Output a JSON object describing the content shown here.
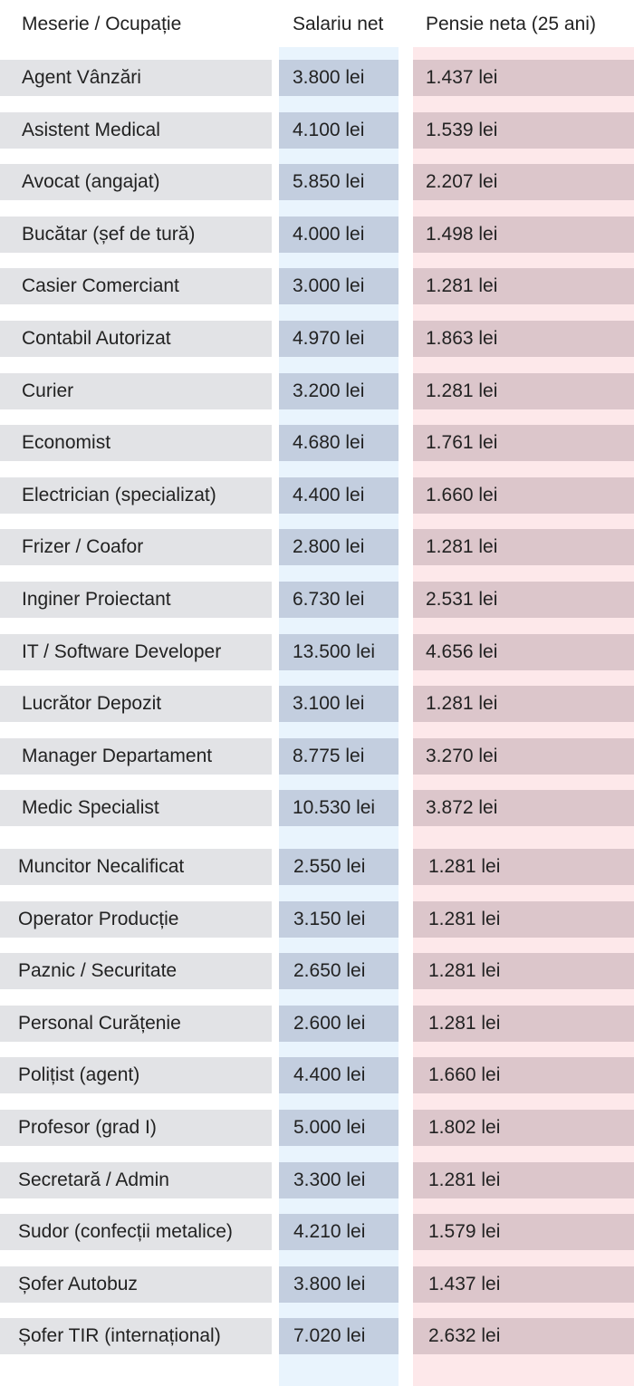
{
  "header": {
    "occupation": "Meserie / Ocupație",
    "salary": "Salariu net",
    "pension": "Pensie neta (25 ani)"
  },
  "colors": {
    "occupation_cell": "#e2e3e6",
    "salary_cell": "#c3cedf",
    "salary_column": "#e9f4fd",
    "pension_cell": "#dcc6cb",
    "pension_column": "#fde8ea"
  },
  "rows": [
    {
      "occupation": "Agent Vânzări",
      "salary": "3.800 lei",
      "pension": "1.437 lei"
    },
    {
      "occupation": "Asistent Medical",
      "salary": "4.100 lei",
      "pension": "1.539 lei"
    },
    {
      "occupation": "Avocat (angajat)",
      "salary": "5.850 lei",
      "pension": "2.207 lei"
    },
    {
      "occupation": "Bucătar (șef de tură)",
      "salary": "4.000 lei",
      "pension": "1.498 lei"
    },
    {
      "occupation": "Casier Comerciant",
      "salary": "3.000 lei",
      "pension": "1.281 lei"
    },
    {
      "occupation": "Contabil Autorizat",
      "salary": "4.970 lei",
      "pension": "1.863 lei"
    },
    {
      "occupation": "Curier",
      "salary": "3.200 lei",
      "pension": "1.281 lei"
    },
    {
      "occupation": "Economist",
      "salary": "4.680 lei",
      "pension": "1.761 lei"
    },
    {
      "occupation": "Electrician (specializat)",
      "salary": "4.400 lei",
      "pension": "1.660 lei"
    },
    {
      "occupation": "Frizer / Coafor",
      "salary": "2.800 lei",
      "pension": "1.281 lei"
    },
    {
      "occupation": "Inginer Proiectant",
      "salary": "6.730 lei",
      "pension": "2.531 lei"
    },
    {
      "occupation": "IT / Software Developer",
      "salary": "13.500 lei",
      "pension": "4.656 lei"
    },
    {
      "occupation": "Lucrător Depozit",
      "salary": "3.100 lei",
      "pension": "1.281 lei"
    },
    {
      "occupation": "Manager Departament",
      "salary": "8.775 lei",
      "pension": "3.270 lei"
    },
    {
      "occupation": "Medic Specialist",
      "salary": "10.530 lei",
      "pension": "3.872 lei"
    },
    {
      "occupation": "Muncitor Necalificat",
      "salary": "2.550 lei",
      "pension": "1.281 lei"
    },
    {
      "occupation": "Operator Producție",
      "salary": "3.150 lei",
      "pension": "1.281 lei"
    },
    {
      "occupation": "Paznic / Securitate",
      "salary": "2.650 lei",
      "pension": "1.281 lei"
    },
    {
      "occupation": "Personal Curățenie",
      "salary": "2.600 lei",
      "pension": "1.281 lei"
    },
    {
      "occupation": "Polițist (agent)",
      "salary": "4.400 lei",
      "pension": "1.660 lei"
    },
    {
      "occupation": "Profesor (grad I)",
      "salary": "5.000 lei",
      "pension": "1.802 lei"
    },
    {
      "occupation": "Secretară / Admin",
      "salary": "3.300 lei",
      "pension": "1.281 lei"
    },
    {
      "occupation": "Sudor (confecții metalice)",
      "salary": "4.210 lei",
      "pension": "1.579 lei"
    },
    {
      "occupation": "Șofer Autobuz",
      "salary": "3.800 lei",
      "pension": "1.437 lei"
    },
    {
      "occupation": "Șofer TIR (internațional)",
      "salary": "7.020 lei",
      "pension": "2.632 lei"
    }
  ]
}
